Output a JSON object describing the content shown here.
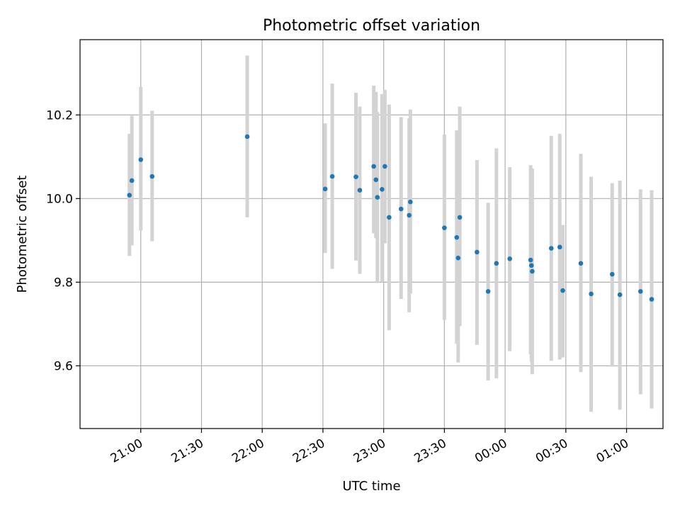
{
  "chart_data": {
    "type": "scatter",
    "title": "Photometric offset variation",
    "xlabel": "UTC time",
    "ylabel": "Photometric offset",
    "x_unit": "minutes after 21:00 UTC (on the axis, values past 24:00 wrap to 00:xx)",
    "xlim": [
      -30,
      258
    ],
    "ylim": [
      9.45,
      10.38
    ],
    "x_ticks": [
      {
        "value": 0,
        "label": "21:00"
      },
      {
        "value": 30,
        "label": "21:30"
      },
      {
        "value": 60,
        "label": "22:00"
      },
      {
        "value": 90,
        "label": "22:30"
      },
      {
        "value": 120,
        "label": "23:00"
      },
      {
        "value": 150,
        "label": "23:30"
      },
      {
        "value": 180,
        "label": "00:00"
      },
      {
        "value": 210,
        "label": "00:30"
      },
      {
        "value": 240,
        "label": "01:00"
      }
    ],
    "y_ticks": [
      {
        "value": 9.6,
        "label": "9.6"
      },
      {
        "value": 9.8,
        "label": "9.8"
      },
      {
        "value": 10.0,
        "label": "10.0"
      },
      {
        "value": 10.2,
        "label": "10.2"
      }
    ],
    "grid": true,
    "point_color": "#1f77b4",
    "errorbar_color": "#d3d3d3",
    "points": [
      {
        "x": -5.6,
        "y": 10.008,
        "err_low": 9.863,
        "err_high": 10.155
      },
      {
        "x": -4.4,
        "y": 10.043,
        "err_low": 9.888,
        "err_high": 10.198
      },
      {
        "x": 0.0,
        "y": 10.093,
        "err_low": 9.923,
        "err_high": 10.267
      },
      {
        "x": 5.6,
        "y": 10.053,
        "err_low": 9.898,
        "err_high": 10.21
      },
      {
        "x": 52.6,
        "y": 10.148,
        "err_low": 9.955,
        "err_high": 10.342
      },
      {
        "x": 91.1,
        "y": 10.023,
        "err_low": 9.87,
        "err_high": 10.18
      },
      {
        "x": 94.6,
        "y": 10.053,
        "err_low": 9.832,
        "err_high": 10.275
      },
      {
        "x": 106.3,
        "y": 10.052,
        "err_low": 9.852,
        "err_high": 10.253
      },
      {
        "x": 108.2,
        "y": 10.02,
        "err_low": 9.82,
        "err_high": 10.22
      },
      {
        "x": 115.1,
        "y": 10.077,
        "err_low": 9.917,
        "err_high": 10.27
      },
      {
        "x": 116.2,
        "y": 10.045,
        "err_low": 9.905,
        "err_high": 10.255
      },
      {
        "x": 116.9,
        "y": 10.003,
        "err_low": 9.798,
        "err_high": 10.207
      },
      {
        "x": 119.2,
        "y": 10.022,
        "err_low": 9.8,
        "err_high": 10.25
      },
      {
        "x": 120.6,
        "y": 10.077,
        "err_low": 9.893,
        "err_high": 10.26
      },
      {
        "x": 122.7,
        "y": 9.955,
        "err_low": 9.685,
        "err_high": 10.225
      },
      {
        "x": 128.6,
        "y": 9.975,
        "err_low": 9.76,
        "err_high": 10.195
      },
      {
        "x": 132.6,
        "y": 9.96,
        "err_low": 9.728,
        "err_high": 10.192
      },
      {
        "x": 133.2,
        "y": 9.992,
        "err_low": 9.773,
        "err_high": 10.213
      },
      {
        "x": 150.0,
        "y": 9.93,
        "err_low": 9.71,
        "err_high": 10.153
      },
      {
        "x": 156.1,
        "y": 9.907,
        "err_low": 9.653,
        "err_high": 10.163
      },
      {
        "x": 156.8,
        "y": 9.858,
        "err_low": 9.608,
        "err_high": 10.103
      },
      {
        "x": 157.6,
        "y": 9.955,
        "err_low": 9.695,
        "err_high": 10.22
      },
      {
        "x": 166.1,
        "y": 9.872,
        "err_low": 9.65,
        "err_high": 10.092
      },
      {
        "x": 171.6,
        "y": 9.778,
        "err_low": 9.565,
        "err_high": 9.99
      },
      {
        "x": 175.7,
        "y": 9.845,
        "err_low": 9.57,
        "err_high": 10.12
      },
      {
        "x": 182.3,
        "y": 9.856,
        "err_low": 9.635,
        "err_high": 10.075
      },
      {
        "x": 192.6,
        "y": 9.853,
        "err_low": 9.628,
        "err_high": 10.08
      },
      {
        "x": 193.0,
        "y": 9.84,
        "err_low": 9.61,
        "err_high": 10.07
      },
      {
        "x": 193.4,
        "y": 9.826,
        "err_low": 9.58,
        "err_high": 10.072
      },
      {
        "x": 202.8,
        "y": 9.881,
        "err_low": 9.612,
        "err_high": 10.15
      },
      {
        "x": 207.0,
        "y": 9.884,
        "err_low": 9.615,
        "err_high": 10.155
      },
      {
        "x": 208.5,
        "y": 9.78,
        "err_low": 9.62,
        "err_high": 9.937
      },
      {
        "x": 217.4,
        "y": 9.845,
        "err_low": 9.585,
        "err_high": 10.107
      },
      {
        "x": 222.5,
        "y": 9.772,
        "err_low": 9.49,
        "err_high": 10.052
      },
      {
        "x": 232.9,
        "y": 9.819,
        "err_low": 9.598,
        "err_high": 10.037
      },
      {
        "x": 236.7,
        "y": 9.77,
        "err_low": 9.495,
        "err_high": 10.043
      },
      {
        "x": 246.9,
        "y": 9.778,
        "err_low": 9.532,
        "err_high": 10.022
      },
      {
        "x": 252.4,
        "y": 9.759,
        "err_low": 9.498,
        "err_high": 10.02
      }
    ]
  }
}
